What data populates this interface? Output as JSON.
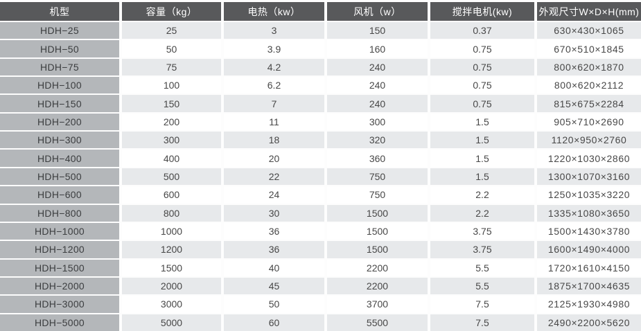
{
  "colors": {
    "header_bg": "#58595b",
    "header_text": "#ffffff",
    "model_column_bg": "#b4b7ba",
    "stripe_odd_bg": "#e7e9eb",
    "stripe_even_bg": "#ffffff",
    "cell_text": "#474747",
    "gap": "#fdfdfd"
  },
  "chart_data": {
    "type": "table",
    "title": "",
    "columns": [
      "机型",
      "容量（kg）",
      "电热（kw）",
      "风机（w）",
      "搅拌电机(kw)",
      "外观尺寸W×D×H(mm)"
    ],
    "rows": [
      [
        "HDH−25",
        "25",
        "3",
        "150",
        "0.37",
        "630×430×1065"
      ],
      [
        "HDH−50",
        "50",
        "3.9",
        "160",
        "0.75",
        "670×510×1845"
      ],
      [
        "HDH−75",
        "75",
        "4.2",
        "240",
        "0.75",
        "800×620×1870"
      ],
      [
        "HDH−100",
        "100",
        "6.2",
        "240",
        "0.75",
        "800×620×2112"
      ],
      [
        "HDH−150",
        "150",
        "7",
        "240",
        "0.75",
        "815×675×2284"
      ],
      [
        "HDH−200",
        "200",
        "11",
        "300",
        "1.5",
        "905×710×2690"
      ],
      [
        "HDH−300",
        "300",
        "18",
        "320",
        "1.5",
        "1120×950×2760"
      ],
      [
        "HDH−400",
        "400",
        "20",
        "360",
        "1.5",
        "1220×1030×2860"
      ],
      [
        "HDH−500",
        "500",
        "22",
        "750",
        "1.5",
        "1300×1070×3160"
      ],
      [
        "HDH−600",
        "600",
        "24",
        "750",
        "2.2",
        "1250×1035×3220"
      ],
      [
        "HDH−800",
        "800",
        "30",
        "1500",
        "2.2",
        "1335×1080×3650"
      ],
      [
        "HDH−1000",
        "1000",
        "36",
        "1500",
        "3.75",
        "1500×1430×3780"
      ],
      [
        "HDH−1200",
        "1200",
        "36",
        "1500",
        "3.75",
        "1600×1490×4000"
      ],
      [
        "HDH−1500",
        "1500",
        "40",
        "2200",
        "5.5",
        "1720×1610×4150"
      ],
      [
        "HDH−2000",
        "2000",
        "45",
        "2200",
        "5.5",
        "1875×1700×4635"
      ],
      [
        "HDH−3000",
        "3000",
        "50",
        "3700",
        "7.5",
        "2125×1930×4980"
      ],
      [
        "HDH−5000",
        "5000",
        "60",
        "5500",
        "7.5",
        "2490×2200×5620"
      ]
    ]
  }
}
